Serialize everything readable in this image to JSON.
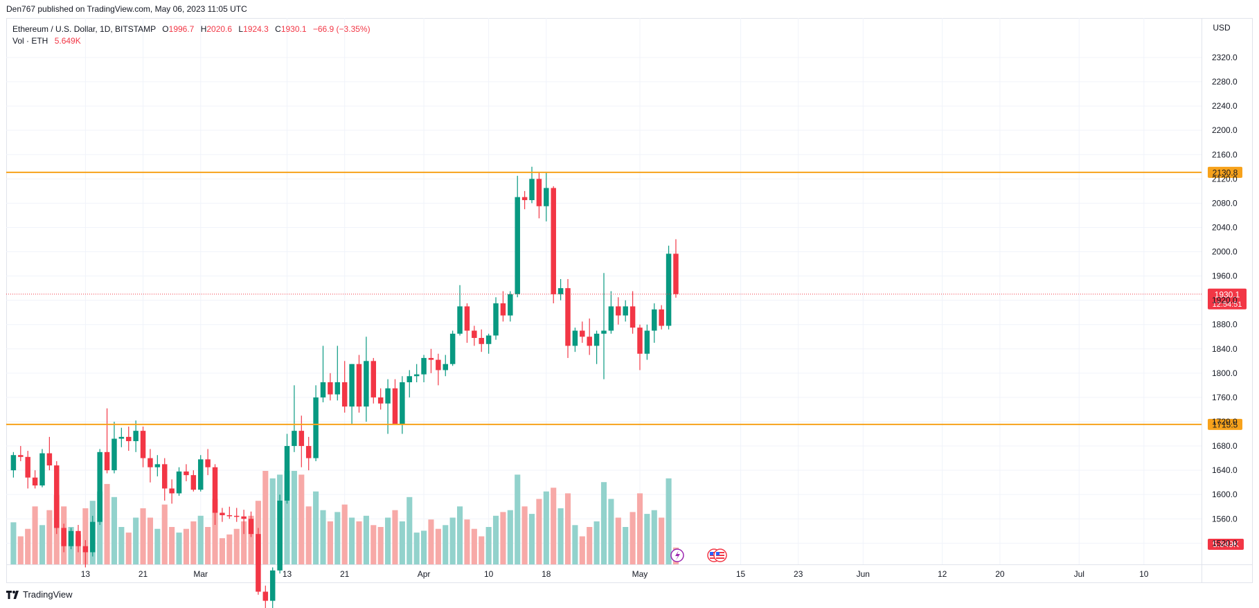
{
  "publisher": "Den767 published on TradingView.com, May 06, 2023 11:05 UTC",
  "legend": {
    "symbol": "Ethereum / U.S. Dollar, 1D, BITSTAMP",
    "o_label": "O",
    "o_value": "1996.7",
    "h_label": "H",
    "h_value": "2020.6",
    "l_label": "L",
    "l_value": "1924.3",
    "c_label": "C",
    "c_value": "1930.1",
    "change": "−66.9 (−3.35%)",
    "vol_label": "Vol · ETH",
    "vol_value": "5.649K"
  },
  "footer": {
    "brand": "TradingView"
  },
  "colors": {
    "up": "#089981",
    "down": "#f23645",
    "vol_up": "#92d2cc",
    "vol_down": "#f7a9a7",
    "level_line": "#f7a21b",
    "grid": "#f0f3fa",
    "axis_text": "#131722"
  },
  "chart_data": {
    "type": "candlestick",
    "currency": "USD",
    "y_range": [
      1485,
      2385
    ],
    "y_ticks": [
      1520,
      1560,
      1600,
      1640,
      1680,
      1720,
      1760,
      1800,
      1840,
      1880,
      1920,
      1960,
      2000,
      2040,
      2080,
      2120,
      2160,
      2200,
      2240,
      2280,
      2320
    ],
    "y_tick_labels": [
      "1520.0",
      "1560.0",
      "1600.0",
      "1640.0",
      "1680.0",
      "1720.0",
      "1760.0",
      "1800.0",
      "1840.0",
      "1880.0",
      "1920.0",
      "1960.0",
      "2000.0",
      "2040.0",
      "2080.0",
      "2120.0",
      "2160.0",
      "2200.0",
      "2240.0",
      "2280.0",
      "2320.0"
    ],
    "x_start_date": "2023-02-02",
    "x_end_date": "2023-07-18",
    "x_ticks": [
      {
        "date": "2023-02-13",
        "label": "13"
      },
      {
        "date": "2023-02-21",
        "label": "21"
      },
      {
        "date": "2023-03-01",
        "label": "Mar"
      },
      {
        "date": "2023-03-13",
        "label": "13"
      },
      {
        "date": "2023-03-21",
        "label": "21"
      },
      {
        "date": "2023-04-01",
        "label": "Apr"
      },
      {
        "date": "2023-04-10",
        "label": "10"
      },
      {
        "date": "2023-04-18",
        "label": "18"
      },
      {
        "date": "2023-05-01",
        "label": "May"
      },
      {
        "date": "2023-05-15",
        "label": "15"
      },
      {
        "date": "2023-05-23",
        "label": "23"
      },
      {
        "date": "2023-06-01",
        "label": "Jun"
      },
      {
        "date": "2023-06-12",
        "label": "12"
      },
      {
        "date": "2023-06-20",
        "label": "20"
      },
      {
        "date": "2023-07-01",
        "label": "Jul"
      },
      {
        "date": "2023-07-10",
        "label": "10"
      }
    ],
    "levels": [
      {
        "value": 2130.8,
        "label": "2130.8"
      },
      {
        "value": 1715.5,
        "label": "1715.5"
      }
    ],
    "last_price": {
      "value": 1930.1,
      "label": "1930.1",
      "countdown": "12:54:51"
    },
    "volume_label": "5.649K",
    "volume_max": 100,
    "candles": [
      {
        "date": "2023-02-03",
        "o": 1640,
        "h": 1670,
        "l": 1628,
        "c": 1665,
        "v": 45
      },
      {
        "date": "2023-02-04",
        "o": 1665,
        "h": 1680,
        "l": 1655,
        "c": 1662,
        "v": 30
      },
      {
        "date": "2023-02-05",
        "o": 1662,
        "h": 1672,
        "l": 1610,
        "c": 1628,
        "v": 38
      },
      {
        "date": "2023-02-06",
        "o": 1628,
        "h": 1640,
        "l": 1610,
        "c": 1615,
        "v": 62
      },
      {
        "date": "2023-02-07",
        "o": 1615,
        "h": 1675,
        "l": 1612,
        "c": 1668,
        "v": 42
      },
      {
        "date": "2023-02-08",
        "o": 1668,
        "h": 1695,
        "l": 1640,
        "c": 1648,
        "v": 58
      },
      {
        "date": "2023-02-09",
        "o": 1648,
        "h": 1655,
        "l": 1535,
        "c": 1545,
        "v": 74
      },
      {
        "date": "2023-02-10",
        "o": 1545,
        "h": 1552,
        "l": 1505,
        "c": 1515,
        "v": 62
      },
      {
        "date": "2023-02-11",
        "o": 1515,
        "h": 1545,
        "l": 1510,
        "c": 1540,
        "v": 40
      },
      {
        "date": "2023-02-12",
        "o": 1540,
        "h": 1550,
        "l": 1505,
        "c": 1515,
        "v": 32
      },
      {
        "date": "2023-02-13",
        "o": 1515,
        "h": 1525,
        "l": 1480,
        "c": 1505,
        "v": 60
      },
      {
        "date": "2023-02-14",
        "o": 1505,
        "h": 1565,
        "l": 1498,
        "c": 1555,
        "v": 68
      },
      {
        "date": "2023-02-15",
        "o": 1555,
        "h": 1675,
        "l": 1550,
        "c": 1670,
        "v": 78
      },
      {
        "date": "2023-02-16",
        "o": 1670,
        "h": 1742,
        "l": 1635,
        "c": 1640,
        "v": 86
      },
      {
        "date": "2023-02-17",
        "o": 1640,
        "h": 1720,
        "l": 1635,
        "c": 1692,
        "v": 72
      },
      {
        "date": "2023-02-18",
        "o": 1692,
        "h": 1710,
        "l": 1678,
        "c": 1695,
        "v": 40
      },
      {
        "date": "2023-02-19",
        "o": 1695,
        "h": 1712,
        "l": 1672,
        "c": 1688,
        "v": 34
      },
      {
        "date": "2023-02-20",
        "o": 1688,
        "h": 1722,
        "l": 1670,
        "c": 1705,
        "v": 50
      },
      {
        "date": "2023-02-21",
        "o": 1705,
        "h": 1712,
        "l": 1645,
        "c": 1660,
        "v": 60
      },
      {
        "date": "2023-02-22",
        "o": 1660,
        "h": 1675,
        "l": 1620,
        "c": 1645,
        "v": 50
      },
      {
        "date": "2023-02-23",
        "o": 1645,
        "h": 1665,
        "l": 1630,
        "c": 1650,
        "v": 38
      },
      {
        "date": "2023-02-24",
        "o": 1650,
        "h": 1660,
        "l": 1590,
        "c": 1610,
        "v": 64
      },
      {
        "date": "2023-02-25",
        "o": 1610,
        "h": 1625,
        "l": 1585,
        "c": 1602,
        "v": 40
      },
      {
        "date": "2023-02-26",
        "o": 1602,
        "h": 1645,
        "l": 1598,
        "c": 1638,
        "v": 34
      },
      {
        "date": "2023-02-27",
        "o": 1638,
        "h": 1650,
        "l": 1622,
        "c": 1632,
        "v": 38
      },
      {
        "date": "2023-02-28",
        "o": 1632,
        "h": 1640,
        "l": 1605,
        "c": 1608,
        "v": 46
      },
      {
        "date": "2023-03-01",
        "o": 1608,
        "h": 1665,
        "l": 1605,
        "c": 1658,
        "v": 52
      },
      {
        "date": "2023-03-02",
        "o": 1658,
        "h": 1675,
        "l": 1632,
        "c": 1645,
        "v": 40
      },
      {
        "date": "2023-03-03",
        "o": 1645,
        "h": 1650,
        "l": 1550,
        "c": 1570,
        "v": 70
      },
      {
        "date": "2023-03-04",
        "o": 1570,
        "h": 1578,
        "l": 1555,
        "c": 1566,
        "v": 28
      },
      {
        "date": "2023-03-05",
        "o": 1566,
        "h": 1580,
        "l": 1560,
        "c": 1565,
        "v": 32
      },
      {
        "date": "2023-03-06",
        "o": 1565,
        "h": 1578,
        "l": 1555,
        "c": 1564,
        "v": 38
      },
      {
        "date": "2023-03-07",
        "o": 1564,
        "h": 1575,
        "l": 1535,
        "c": 1560,
        "v": 46
      },
      {
        "date": "2023-03-08",
        "o": 1560,
        "h": 1572,
        "l": 1530,
        "c": 1535,
        "v": 52
      },
      {
        "date": "2023-03-09",
        "o": 1535,
        "h": 1545,
        "l": 1435,
        "c": 1440,
        "v": 68
      },
      {
        "date": "2023-03-10",
        "o": 1440,
        "h": 1450,
        "l": 1370,
        "c": 1425,
        "v": 110
      },
      {
        "date": "2023-03-11",
        "o": 1425,
        "h": 1480,
        "l": 1410,
        "c": 1475,
        "v": 92
      },
      {
        "date": "2023-03-12",
        "o": 1475,
        "h": 1600,
        "l": 1470,
        "c": 1590,
        "v": 96
      },
      {
        "date": "2023-03-13",
        "o": 1590,
        "h": 1700,
        "l": 1585,
        "c": 1680,
        "v": 118
      },
      {
        "date": "2023-03-14",
        "o": 1680,
        "h": 1780,
        "l": 1670,
        "c": 1705,
        "v": 104
      },
      {
        "date": "2023-03-15",
        "o": 1705,
        "h": 1730,
        "l": 1645,
        "c": 1680,
        "v": 96
      },
      {
        "date": "2023-03-16",
        "o": 1680,
        "h": 1695,
        "l": 1640,
        "c": 1660,
        "v": 62
      },
      {
        "date": "2023-03-17",
        "o": 1660,
        "h": 1780,
        "l": 1655,
        "c": 1760,
        "v": 78
      },
      {
        "date": "2023-03-18",
        "o": 1760,
        "h": 1845,
        "l": 1752,
        "c": 1785,
        "v": 58
      },
      {
        "date": "2023-03-19",
        "o": 1785,
        "h": 1800,
        "l": 1755,
        "c": 1765,
        "v": 46
      },
      {
        "date": "2023-03-20",
        "o": 1765,
        "h": 1845,
        "l": 1755,
        "c": 1785,
        "v": 56
      },
      {
        "date": "2023-03-21",
        "o": 1785,
        "h": 1820,
        "l": 1735,
        "c": 1745,
        "v": 64
      },
      {
        "date": "2023-03-22",
        "o": 1745,
        "h": 1815,
        "l": 1715,
        "c": 1815,
        "v": 50
      },
      {
        "date": "2023-03-23",
        "o": 1815,
        "h": 1830,
        "l": 1735,
        "c": 1745,
        "v": 46
      },
      {
        "date": "2023-03-24",
        "o": 1745,
        "h": 1860,
        "l": 1720,
        "c": 1820,
        "v": 52
      },
      {
        "date": "2023-03-25",
        "o": 1820,
        "h": 1825,
        "l": 1750,
        "c": 1760,
        "v": 42
      },
      {
        "date": "2023-03-26",
        "o": 1760,
        "h": 1775,
        "l": 1740,
        "c": 1750,
        "v": 40
      },
      {
        "date": "2023-03-27",
        "o": 1750,
        "h": 1790,
        "l": 1700,
        "c": 1775,
        "v": 50
      },
      {
        "date": "2023-03-28",
        "o": 1775,
        "h": 1790,
        "l": 1720,
        "c": 1715,
        "v": 58
      },
      {
        "date": "2023-03-29",
        "o": 1715,
        "h": 1795,
        "l": 1700,
        "c": 1785,
        "v": 46
      },
      {
        "date": "2023-03-30",
        "o": 1785,
        "h": 1805,
        "l": 1760,
        "c": 1795,
        "v": 72
      },
      {
        "date": "2023-03-31",
        "o": 1795,
        "h": 1815,
        "l": 1785,
        "c": 1798,
        "v": 34
      },
      {
        "date": "2023-04-01",
        "o": 1798,
        "h": 1830,
        "l": 1785,
        "c": 1825,
        "v": 36
      },
      {
        "date": "2023-04-02",
        "o": 1825,
        "h": 1840,
        "l": 1800,
        "c": 1822,
        "v": 48
      },
      {
        "date": "2023-04-03",
        "o": 1822,
        "h": 1832,
        "l": 1780,
        "c": 1805,
        "v": 38
      },
      {
        "date": "2023-04-04",
        "o": 1805,
        "h": 1830,
        "l": 1795,
        "c": 1815,
        "v": 42
      },
      {
        "date": "2023-04-05",
        "o": 1815,
        "h": 1870,
        "l": 1812,
        "c": 1865,
        "v": 50
      },
      {
        "date": "2023-04-06",
        "o": 1865,
        "h": 1945,
        "l": 1862,
        "c": 1910,
        "v": 62
      },
      {
        "date": "2023-04-07",
        "o": 1910,
        "h": 1915,
        "l": 1850,
        "c": 1870,
        "v": 48
      },
      {
        "date": "2023-04-08",
        "o": 1870,
        "h": 1878,
        "l": 1845,
        "c": 1858,
        "v": 38
      },
      {
        "date": "2023-04-09",
        "o": 1858,
        "h": 1872,
        "l": 1835,
        "c": 1848,
        "v": 30
      },
      {
        "date": "2023-04-10",
        "o": 1848,
        "h": 1865,
        "l": 1832,
        "c": 1862,
        "v": 40
      },
      {
        "date": "2023-04-11",
        "o": 1862,
        "h": 1925,
        "l": 1855,
        "c": 1915,
        "v": 52
      },
      {
        "date": "2023-04-12",
        "o": 1915,
        "h": 1935,
        "l": 1885,
        "c": 1895,
        "v": 56
      },
      {
        "date": "2023-04-13",
        "o": 1895,
        "h": 1935,
        "l": 1885,
        "c": 1930,
        "v": 58
      },
      {
        "date": "2023-04-14",
        "o": 1930,
        "h": 2125,
        "l": 1925,
        "c": 2090,
        "v": 96
      },
      {
        "date": "2023-04-15",
        "o": 2090,
        "h": 2100,
        "l": 2070,
        "c": 2085,
        "v": 62
      },
      {
        "date": "2023-04-16",
        "o": 2085,
        "h": 2140,
        "l": 2080,
        "c": 2120,
        "v": 54
      },
      {
        "date": "2023-04-17",
        "o": 2120,
        "h": 2130,
        "l": 2055,
        "c": 2075,
        "v": 70
      },
      {
        "date": "2023-04-18",
        "o": 2075,
        "h": 2130,
        "l": 2050,
        "c": 2105,
        "v": 78
      },
      {
        "date": "2023-04-19",
        "o": 2105,
        "h": 2108,
        "l": 1915,
        "c": 1930,
        "v": 82
      },
      {
        "date": "2023-04-20",
        "o": 1930,
        "h": 1955,
        "l": 1920,
        "c": 1940,
        "v": 60
      },
      {
        "date": "2023-04-21",
        "o": 1940,
        "h": 1955,
        "l": 1825,
        "c": 1845,
        "v": 76
      },
      {
        "date": "2023-04-22",
        "o": 1845,
        "h": 1875,
        "l": 1835,
        "c": 1870,
        "v": 42
      },
      {
        "date": "2023-04-23",
        "o": 1870,
        "h": 1885,
        "l": 1850,
        "c": 1860,
        "v": 30
      },
      {
        "date": "2023-04-24",
        "o": 1860,
        "h": 1890,
        "l": 1830,
        "c": 1845,
        "v": 40
      },
      {
        "date": "2023-04-25",
        "o": 1845,
        "h": 1870,
        "l": 1815,
        "c": 1865,
        "v": 46
      },
      {
        "date": "2023-04-26",
        "o": 1865,
        "h": 1965,
        "l": 1790,
        "c": 1870,
        "v": 88
      },
      {
        "date": "2023-04-27",
        "o": 1870,
        "h": 1935,
        "l": 1865,
        "c": 1910,
        "v": 70
      },
      {
        "date": "2023-04-28",
        "o": 1910,
        "h": 1925,
        "l": 1880,
        "c": 1895,
        "v": 50
      },
      {
        "date": "2023-04-29",
        "o": 1895,
        "h": 1920,
        "l": 1885,
        "c": 1910,
        "v": 40
      },
      {
        "date": "2023-04-30",
        "o": 1910,
        "h": 1935,
        "l": 1865,
        "c": 1875,
        "v": 56
      },
      {
        "date": "2023-05-01",
        "o": 1875,
        "h": 1880,
        "l": 1805,
        "c": 1832,
        "v": 76
      },
      {
        "date": "2023-05-02",
        "o": 1832,
        "h": 1880,
        "l": 1822,
        "c": 1870,
        "v": 54
      },
      {
        "date": "2023-05-03",
        "o": 1870,
        "h": 1915,
        "l": 1850,
        "c": 1905,
        "v": 58
      },
      {
        "date": "2023-05-04",
        "o": 1905,
        "h": 1912,
        "l": 1872,
        "c": 1878,
        "v": 50
      },
      {
        "date": "2023-05-05",
        "o": 1878,
        "h": 2010,
        "l": 1872,
        "c": 1996.7,
        "v": 92
      },
      {
        "date": "2023-05-06",
        "o": 1996.7,
        "h": 2020.6,
        "l": 1924.3,
        "c": 1930.1,
        "v": 18
      }
    ]
  }
}
